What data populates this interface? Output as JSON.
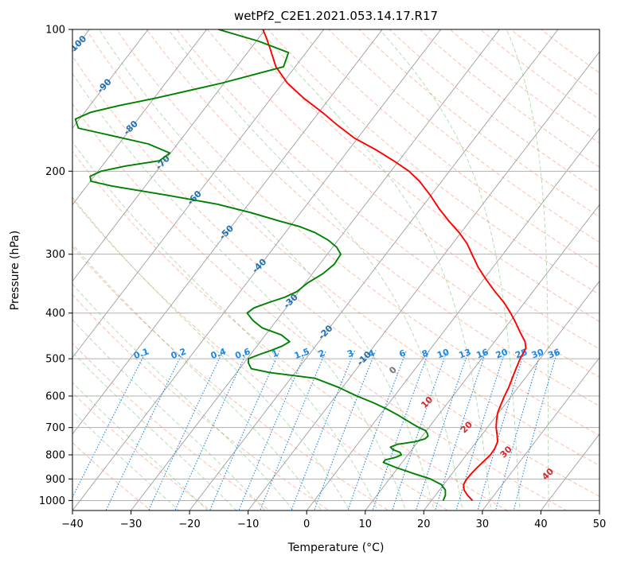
{
  "chart_data": {
    "type": "line",
    "subtype": "skew-T log-P",
    "title": "wetPf2_C2E1.2021.053.14.17.R17",
    "xlabel": "Temperature (°C)",
    "ylabel": "Pressure (hPa)",
    "xlim": [
      -40,
      50
    ],
    "ylim": [
      1050,
      100
    ],
    "y_scale": "log",
    "x_ticks": [
      -40,
      -30,
      -20,
      -10,
      0,
      10,
      20,
      30,
      40,
      50
    ],
    "x_tick_labels": [
      "−40",
      "−30",
      "−20",
      "−10",
      "0",
      "10",
      "20",
      "30",
      "40",
      "50"
    ],
    "y_ticks": [
      100,
      200,
      300,
      400,
      500,
      600,
      700,
      800,
      900,
      1000
    ],
    "grid": true,
    "colors": {
      "temperature": "#ff0000",
      "dewpoint": "#008000",
      "dry_adiabat": "#ff6f47",
      "moist_adiabat": "#2ca02c",
      "mixing_ratio": "#1e88e5",
      "skew_isotherm": "#9e9e9e",
      "dry_adiabat_labels": "#1f6fb2",
      "moist_adiabat_labels": "#d62728"
    },
    "series": [
      {
        "role": "temperature",
        "pressure": [
          1000,
          975,
          950,
          925,
          900,
          875,
          850,
          825,
          800,
          775,
          750,
          725,
          700,
          675,
          650,
          625,
          600,
          575,
          550,
          525,
          500,
          475,
          460,
          440,
          420,
          400,
          380,
          360,
          340,
          320,
          300,
          285,
          270,
          255,
          240,
          225,
          210,
          200,
          190,
          180,
          170,
          160,
          150,
          140,
          130,
          120,
          110,
          105,
          100
        ],
        "temperature": [
          27.0,
          25.5,
          24.2,
          23.4,
          23.2,
          23.3,
          23.5,
          23.8,
          24.1,
          24.0,
          23.6,
          22.6,
          21.5,
          20.6,
          19.8,
          19.3,
          18.8,
          18.4,
          17.8,
          17.2,
          16.6,
          16.2,
          15.2,
          13.2,
          11.2,
          9.0,
          6.5,
          3.5,
          0.5,
          -2.5,
          -5.3,
          -7.5,
          -10.3,
          -13.6,
          -16.9,
          -20.1,
          -23.8,
          -26.9,
          -30.9,
          -35.4,
          -40.6,
          -45.0,
          -49.4,
          -54.4,
          -59.2,
          -63.3,
          -66.6,
          -68.4,
          -70.4
        ]
      },
      {
        "role": "dewpoint",
        "pressure": [
          1000,
          975,
          950,
          925,
          900,
          875,
          850,
          830,
          820,
          810,
          800,
          790,
          780,
          770,
          760,
          750,
          740,
          730,
          720,
          710,
          700,
          680,
          660,
          640,
          620,
          600,
          575,
          550,
          535,
          525,
          510,
          500,
          490,
          480,
          470,
          460,
          445,
          430,
          415,
          400,
          390,
          380,
          370,
          360,
          345,
          330,
          315,
          300,
          290,
          280,
          270,
          262,
          255,
          245,
          235,
          225,
          215,
          210,
          205,
          200,
          195,
          190,
          183,
          175,
          168,
          162,
          155,
          150,
          145,
          140,
          130,
          120,
          112,
          106,
          100
        ],
        "dewpoint": [
          22.0,
          21.7,
          21.0,
          19.6,
          17.0,
          13.2,
          9.5,
          6.8,
          6.8,
          8.2,
          8.9,
          8.3,
          6.8,
          6.0,
          6.8,
          9.5,
          10.8,
          11.0,
          10.5,
          9.8,
          8.3,
          5.8,
          3.3,
          0.5,
          -2.7,
          -6.4,
          -10.7,
          -15.9,
          -24.3,
          -28.0,
          -29.3,
          -29.8,
          -28.5,
          -27.0,
          -25.7,
          -25.0,
          -27.3,
          -31.5,
          -34.0,
          -36.0,
          -35.5,
          -33.7,
          -31.6,
          -30.3,
          -29.6,
          -28.2,
          -27.5,
          -27.7,
          -29.3,
          -31.7,
          -34.9,
          -38.4,
          -42.6,
          -48.4,
          -55.3,
          -64.9,
          -75.7,
          -79.9,
          -80.7,
          -79.5,
          -76.0,
          -70.9,
          -70.1,
          -75.0,
          -82.4,
          -89.0,
          -90.7,
          -89.0,
          -84.9,
          -79.8,
          -70.4,
          -62.0,
          -63.0,
          -69.5,
          -78.0
        ]
      }
    ],
    "dry_adiabat_labels": [
      "-100",
      "-90",
      "-80",
      "-70",
      "-60",
      "-50",
      "-40",
      "-30",
      "-20",
      "-10"
    ],
    "moist_adiabat_labels": [
      "0",
      "10",
      "20",
      "30",
      "40"
    ],
    "mixing_ratio_labels": [
      "0.1",
      "0.2",
      "0.4",
      "0.6",
      "1",
      "1.5",
      "2",
      "3",
      "4",
      "6",
      "8",
      "10",
      "13",
      "16",
      "20",
      "25",
      "30",
      "36"
    ]
  }
}
